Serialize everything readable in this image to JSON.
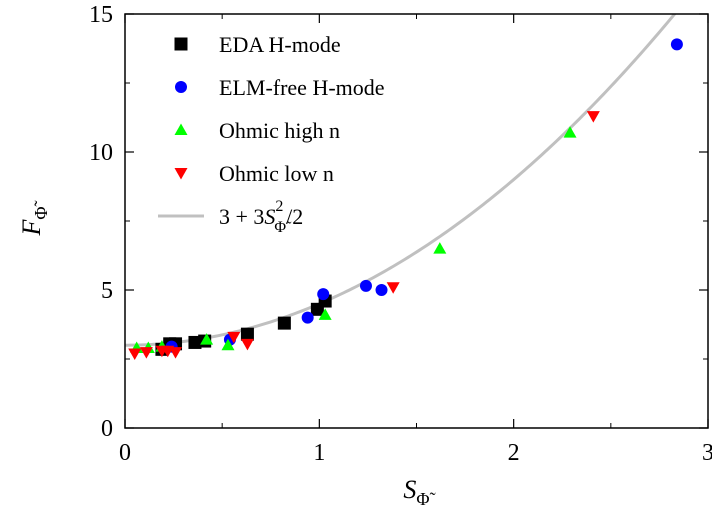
{
  "chart_data": {
    "type": "scatter",
    "xlabel": {
      "main": "S",
      "sub": "Φ̃"
    },
    "ylabel": {
      "main": "F",
      "sub": "Φ̃"
    },
    "xlim": [
      0,
      3
    ],
    "ylim": [
      0,
      15
    ],
    "xticks": [
      "0",
      "1",
      "2",
      "3"
    ],
    "yticks": [
      "0",
      "5",
      "10",
      "15"
    ],
    "xtick_values": [
      0,
      1,
      2,
      3
    ],
    "ytick_values": [
      0,
      5,
      10,
      15
    ],
    "legend_position": "top-left",
    "series": [
      {
        "name": "EDA H-mode",
        "marker": "square",
        "color": "#000000",
        "points": [
          [
            0.19,
            2.85
          ],
          [
            0.23,
            3.05
          ],
          [
            0.26,
            3.05
          ],
          [
            0.36,
            3.1
          ],
          [
            0.41,
            3.15
          ],
          [
            0.63,
            3.4
          ],
          [
            0.82,
            3.8
          ],
          [
            0.99,
            4.3
          ],
          [
            1.03,
            4.6
          ]
        ]
      },
      {
        "name": "ELM-free H-mode",
        "marker": "circle",
        "color": "#0000ff",
        "points": [
          [
            0.24,
            2.95
          ],
          [
            0.54,
            3.2
          ],
          [
            0.94,
            4.0
          ],
          [
            1.02,
            4.85
          ],
          [
            1.24,
            5.15
          ],
          [
            1.32,
            5.0
          ],
          [
            2.84,
            13.9
          ]
        ]
      },
      {
        "name": "Ohmic high n",
        "marker": "triangle-up",
        "color": "#00ff00",
        "points": [
          [
            0.06,
            2.9
          ],
          [
            0.12,
            2.9
          ],
          [
            0.19,
            2.95
          ],
          [
            0.42,
            3.2
          ],
          [
            0.53,
            3.0
          ],
          [
            1.03,
            4.1
          ],
          [
            1.62,
            6.5
          ],
          [
            2.29,
            10.7
          ]
        ]
      },
      {
        "name": "Ohmic low n",
        "marker": "triangle-down",
        "color": "#ff0000",
        "points": [
          [
            0.05,
            2.7
          ],
          [
            0.11,
            2.75
          ],
          [
            0.19,
            2.8
          ],
          [
            0.22,
            2.8
          ],
          [
            0.26,
            2.75
          ],
          [
            0.56,
            3.3
          ],
          [
            0.63,
            3.05
          ],
          [
            1.38,
            5.1
          ],
          [
            2.41,
            11.3
          ]
        ]
      }
    ],
    "curve": {
      "name": "3 + 3S²/2",
      "label_parts": {
        "pre": "3 + 3",
        "var": "S",
        "sup": "2",
        "sub": "Φ̃",
        "post": "/2"
      },
      "color": "#c0c0c0",
      "a": 3,
      "b": 1.5
    }
  }
}
